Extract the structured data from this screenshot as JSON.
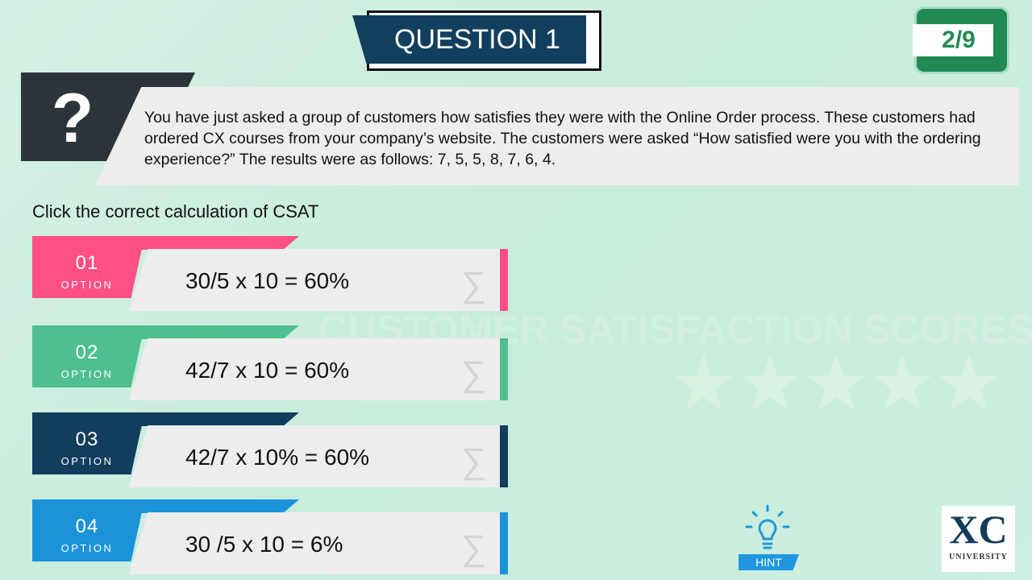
{
  "header": {
    "title": "QUESTION 1",
    "counter": "2/9"
  },
  "question": {
    "icon": "question-mark-icon",
    "mark": "?",
    "text": "You have just asked a group of customers how satisfies they were with the Online Order process.  These customers had ordered CX courses from your company’s website.  The customers were asked “How satisfied were you with the ordering experience?” The results were as follows: 7, 5, 5, 8, 7, 6, 4."
  },
  "instruction": "Click the correct calculation of  CSAT",
  "options": [
    {
      "number": "01",
      "label": "OPTION",
      "answer": "30/5 x 10 = 60%",
      "color": "#ff4f86"
    },
    {
      "number": "02",
      "label": "OPTION",
      "answer": "42/7  x 10 = 60%",
      "color": "#4fbf8f"
    },
    {
      "number": "03",
      "label": "OPTION",
      "answer": "42/7 x 10% = 60%",
      "color": "#123d5c"
    },
    {
      "number": "04",
      "label": "OPTION",
      "answer": "30 /5 x 10 = 6%",
      "color": "#1a93d9"
    }
  ],
  "watermark": {
    "text": "CUSTOMER SATISFACTION SCORES",
    "stars": "★★★★★"
  },
  "hint": {
    "label": "HINT",
    "icon": "lightbulb-icon"
  },
  "logo": {
    "mark": "XC",
    "text": "UNIVERSITY"
  }
}
